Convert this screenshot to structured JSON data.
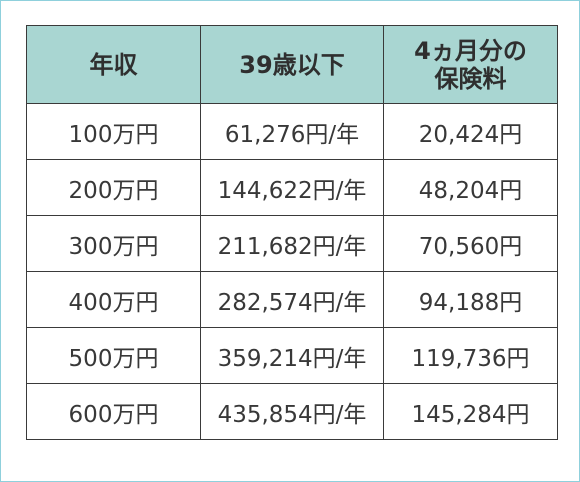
{
  "table": {
    "headers": {
      "income": "年収",
      "age_cost": "39歳以下",
      "premium_line1": "4ヵ月分の",
      "premium_line2": "保険料"
    },
    "rows": [
      {
        "income": "100万円",
        "annual": "61,276円/年",
        "four_months": "20,424円"
      },
      {
        "income": "200万円",
        "annual": "144,622円/年",
        "four_months": "48,204円"
      },
      {
        "income": "300万円",
        "annual": "211,682円/年",
        "four_months": "70,560円"
      },
      {
        "income": "400万円",
        "annual": "282,574円/年",
        "four_months": "94,188円"
      },
      {
        "income": "500万円",
        "annual": "359,214円/年",
        "four_months": "119,736円"
      },
      {
        "income": "600万円",
        "annual": "435,854円/年",
        "four_months": "145,284円"
      }
    ]
  },
  "colors": {
    "header_bg": "#a9d6d2",
    "frame_border": "#8fd0dc",
    "grid": "#3a3a3a"
  }
}
